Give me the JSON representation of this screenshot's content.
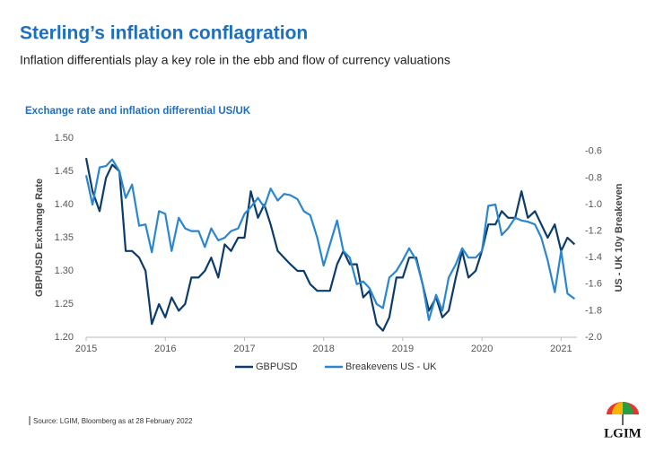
{
  "chart_data": {
    "type": "line",
    "title": "Sterling’s inflation conflagration",
    "subtitle": "Inflation differentials play a key role in the ebb and flow of currency valuations",
    "chart_title": "Exchange rate and inflation differential US/UK",
    "y_label": "GBP/USD Exchange Rate",
    "y2_label": "US - UK 10y Breakeven",
    "source": "Source: LGIM,  Bloomberg as at 28 February 2022",
    "logo": "LGIM",
    "x": [
      2015,
      2015.08,
      2015.17,
      2015.25,
      2015.33,
      2015.42,
      2015.5,
      2015.58,
      2015.67,
      2015.75,
      2015.83,
      2015.92,
      2016,
      2016.08,
      2016.17,
      2016.25,
      2016.33,
      2016.42,
      2016.5,
      2016.58,
      2016.67,
      2016.75,
      2016.83,
      2016.92,
      2017,
      2017.08,
      2017.17,
      2017.25,
      2017.33,
      2017.42,
      2017.5,
      2017.58,
      2017.67,
      2017.75,
      2017.83,
      2017.92,
      2018,
      2018.08,
      2018.17,
      2018.25,
      2018.33,
      2018.42,
      2018.5,
      2018.58,
      2018.67,
      2018.75,
      2018.83,
      2018.92,
      2019,
      2019.08,
      2019.17,
      2019.25,
      2019.33,
      2019.42,
      2019.5,
      2019.58,
      2019.67,
      2019.75,
      2019.83,
      2019.92,
      2020,
      2020.08,
      2020.17,
      2020.25,
      2020.33,
      2020.42,
      2020.5,
      2020.58,
      2020.67,
      2020.75,
      2020.83,
      2020.92,
      2021,
      2021.08,
      2021.17
    ],
    "series": [
      {
        "name": "GBPUSD",
        "color": "#0c3c6c",
        "axis": "y",
        "values": [
          1.47,
          1.42,
          1.39,
          1.44,
          1.46,
          1.45,
          1.33,
          1.33,
          1.32,
          1.3,
          1.22,
          1.25,
          1.23,
          1.26,
          1.24,
          1.25,
          1.29,
          1.29,
          1.3,
          1.32,
          1.29,
          1.34,
          1.33,
          1.35,
          1.35,
          1.42,
          1.38,
          1.4,
          1.37,
          1.33,
          1.32,
          1.31,
          1.3,
          1.3,
          1.28,
          1.27,
          1.27,
          1.27,
          1.31,
          1.33,
          1.31,
          1.31,
          1.26,
          1.27,
          1.22,
          1.21,
          1.23,
          1.29,
          1.29,
          1.32,
          1.32,
          1.28,
          1.24,
          1.26,
          1.23,
          1.24,
          1.29,
          1.33,
          1.29,
          1.3,
          1.33,
          1.37,
          1.37,
          1.39,
          1.38,
          1.38,
          1.42,
          1.38,
          1.39,
          1.37,
          1.35,
          1.37,
          1.33,
          1.35,
          1.34
        ]
      },
      {
        "name": "Breakevens US - UK",
        "color": "#2a86d1",
        "axis": "y2",
        "values": [
          -0.78,
          -1.0,
          -0.72,
          -0.71,
          -0.66,
          -0.75,
          -0.95,
          -0.85,
          -1.16,
          -1.15,
          -1.36,
          -1.05,
          -1.07,
          -1.35,
          -1.1,
          -1.18,
          -1.2,
          -1.2,
          -1.32,
          -1.18,
          -1.27,
          -1.25,
          -1.2,
          -1.18,
          -1.07,
          -1.02,
          -0.95,
          -1.02,
          -0.88,
          -0.97,
          -0.92,
          -0.93,
          -0.96,
          -1.05,
          -1.08,
          -1.25,
          -1.46,
          -1.3,
          -1.12,
          -1.35,
          -1.4,
          -1.6,
          -1.58,
          -1.63,
          -1.75,
          -1.78,
          -1.55,
          -1.5,
          -1.42,
          -1.33,
          -1.42,
          -1.6,
          -1.87,
          -1.68,
          -1.8,
          -1.55,
          -1.45,
          -1.33,
          -1.4,
          -1.4,
          -1.35,
          -1.01,
          -1.0,
          -1.23,
          -1.18,
          -1.1,
          -1.12,
          -1.13,
          -1.15,
          -1.25,
          -1.42,
          -1.66,
          -1.35,
          -1.67,
          -1.71
        ]
      }
    ],
    "xlim": [
      2015,
      2021.2
    ],
    "xticks": [
      2015,
      2016,
      2017,
      2018,
      2019,
      2020,
      2021
    ],
    "ylim": [
      1.2,
      1.5
    ],
    "yticks": [
      {
        "value": 1.2,
        "label": "1.20"
      },
      1.25,
      {
        "value": 1.3,
        "label": "1.30"
      },
      1.35,
      {
        "value": 1.4,
        "label": "1.40"
      },
      1.45,
      {
        "value": 1.5,
        "label": "1.50"
      }
    ],
    "y2lim": [
      -2.0,
      -0.5
    ],
    "y2ticks": [
      {
        "value": -2.0,
        "label": "-2.0"
      },
      -1.8,
      -1.6,
      -1.4,
      -1.2,
      {
        "value": -1.0,
        "label": "-1.0"
      },
      -0.8,
      -0.6
    ],
    "legend": "bottom",
    "grid": false
  }
}
